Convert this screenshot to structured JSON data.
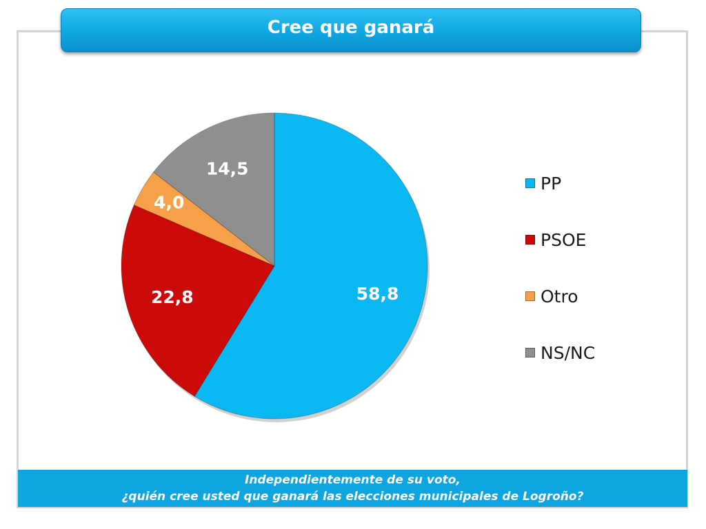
{
  "header": {
    "title": "Cree que ganará"
  },
  "footer": {
    "line1": "Independientemente de su voto,",
    "line2": "¿quién cree usted que ganará las elecciones municipales de Logroño?"
  },
  "chart_data": {
    "type": "pie",
    "categories": [
      "PP",
      "PSOE",
      "Otro",
      "NS/NC"
    ],
    "values": [
      58.8,
      22.8,
      4.0,
      14.5
    ],
    "value_labels": [
      "58,8",
      "22,8",
      "4,0",
      "14,5"
    ],
    "colors": [
      "#0bb8f2",
      "#cc0a0a",
      "#f7a04a",
      "#8f8f8f"
    ],
    "legend_position": "right",
    "start_angle": "top, clockwise"
  }
}
